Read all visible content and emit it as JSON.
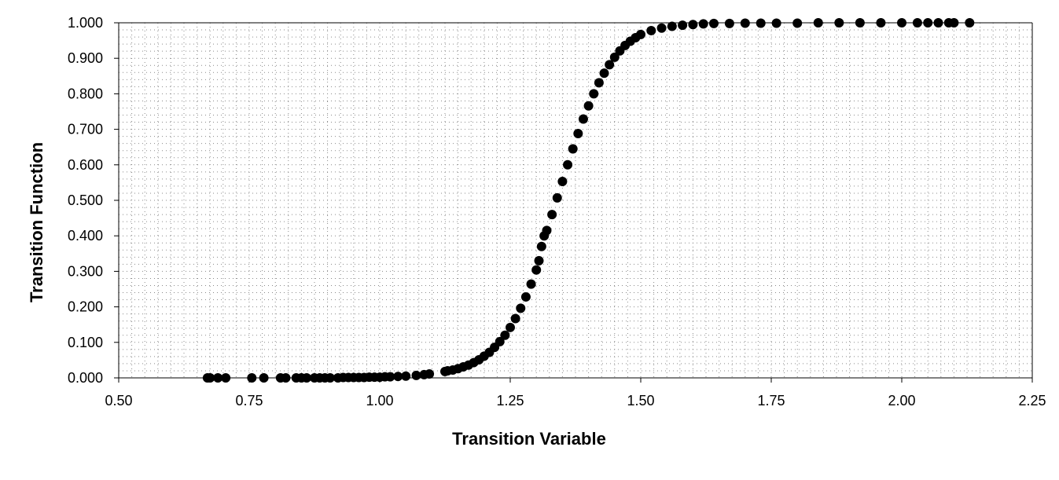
{
  "chart_data": {
    "type": "scatter",
    "title": "",
    "xlabel": "Transition Variable",
    "ylabel": "Transition Function",
    "xlim": [
      0.5,
      2.25
    ],
    "ylim": [
      0.0,
      1.0
    ],
    "x_ticks": [
      0.5,
      0.75,
      1.0,
      1.25,
      1.5,
      1.75,
      2.0,
      2.25
    ],
    "x_tick_labels": [
      "0.50",
      "0.75",
      "1.00",
      "1.25",
      "1.50",
      "1.75",
      "2.00",
      "2.25"
    ],
    "y_ticks": [
      0.0,
      0.1,
      0.2,
      0.3,
      0.4,
      0.5,
      0.6,
      0.7,
      0.8,
      0.9,
      1.0
    ],
    "y_tick_labels": [
      "0.000",
      "0.100",
      "0.200",
      "0.300",
      "0.400",
      "0.500",
      "0.600",
      "0.700",
      "0.800",
      "0.900",
      "1.000"
    ],
    "grid": "dotted major and minor gridlines",
    "legend": "none",
    "marker_color": "#000000",
    "series": [
      {
        "points": [
          [
            0.67,
            0.0
          ],
          [
            0.675,
            0.0
          ],
          [
            0.69,
            0.0
          ],
          [
            0.705,
            0.0
          ],
          [
            0.755,
            0.0
          ],
          [
            0.778,
            0.0
          ],
          [
            0.81,
            0.0
          ],
          [
            0.82,
            0.0
          ],
          [
            0.84,
            0.0
          ],
          [
            0.85,
            0.0
          ],
          [
            0.86,
            0.0
          ],
          [
            0.875,
            0.0
          ],
          [
            0.885,
            0.0
          ],
          [
            0.895,
            0.0
          ],
          [
            0.905,
            0.0
          ],
          [
            0.92,
            0.0
          ],
          [
            0.93,
            0.001
          ],
          [
            0.94,
            0.001
          ],
          [
            0.95,
            0.001
          ],
          [
            0.96,
            0.001
          ],
          [
            0.97,
            0.001
          ],
          [
            0.98,
            0.002
          ],
          [
            0.99,
            0.002
          ],
          [
            1.0,
            0.002
          ],
          [
            1.01,
            0.003
          ],
          [
            1.02,
            0.003
          ],
          [
            1.035,
            0.004
          ],
          [
            1.05,
            0.005
          ],
          [
            1.07,
            0.007
          ],
          [
            1.085,
            0.009
          ],
          [
            1.095,
            0.011
          ],
          [
            1.125,
            0.018
          ],
          [
            1.13,
            0.02
          ],
          [
            1.14,
            0.022
          ],
          [
            1.15,
            0.026
          ],
          [
            1.16,
            0.031
          ],
          [
            1.17,
            0.036
          ],
          [
            1.18,
            0.043
          ],
          [
            1.19,
            0.051
          ],
          [
            1.2,
            0.061
          ],
          [
            1.21,
            0.072
          ],
          [
            1.22,
            0.086
          ],
          [
            1.23,
            0.102
          ],
          [
            1.24,
            0.12
          ],
          [
            1.25,
            0.142
          ],
          [
            1.26,
            0.167
          ],
          [
            1.27,
            0.196
          ],
          [
            1.28,
            0.228
          ],
          [
            1.29,
            0.264
          ],
          [
            1.3,
            0.304
          ],
          [
            1.305,
            0.33
          ],
          [
            1.31,
            0.37
          ],
          [
            1.315,
            0.4
          ],
          [
            1.32,
            0.415
          ],
          [
            1.33,
            0.46
          ],
          [
            1.34,
            0.507
          ],
          [
            1.35,
            0.553
          ],
          [
            1.36,
            0.6
          ],
          [
            1.37,
            0.645
          ],
          [
            1.38,
            0.688
          ],
          [
            1.39,
            0.729
          ],
          [
            1.4,
            0.766
          ],
          [
            1.41,
            0.8
          ],
          [
            1.42,
            0.831
          ],
          [
            1.43,
            0.858
          ],
          [
            1.44,
            0.882
          ],
          [
            1.45,
            0.903
          ],
          [
            1.46,
            0.921
          ],
          [
            1.47,
            0.936
          ],
          [
            1.48,
            0.948
          ],
          [
            1.49,
            0.958
          ],
          [
            1.5,
            0.967
          ],
          [
            1.52,
            0.978
          ],
          [
            1.54,
            0.985
          ],
          [
            1.56,
            0.99
          ],
          [
            1.58,
            0.993
          ],
          [
            1.6,
            0.995
          ],
          [
            1.62,
            0.997
          ],
          [
            1.64,
            0.998
          ],
          [
            1.67,
            0.998
          ],
          [
            1.7,
            0.999
          ],
          [
            1.73,
            0.999
          ],
          [
            1.76,
            0.999
          ],
          [
            1.8,
            0.999
          ],
          [
            1.84,
            1.0
          ],
          [
            1.88,
            1.0
          ],
          [
            1.92,
            1.0
          ],
          [
            1.96,
            1.0
          ],
          [
            2.0,
            1.0
          ],
          [
            2.03,
            1.0
          ],
          [
            2.05,
            1.0
          ],
          [
            2.07,
            1.0
          ],
          [
            2.09,
            1.0
          ],
          [
            2.1,
            1.0
          ],
          [
            2.13,
            1.0
          ]
        ]
      }
    ]
  }
}
